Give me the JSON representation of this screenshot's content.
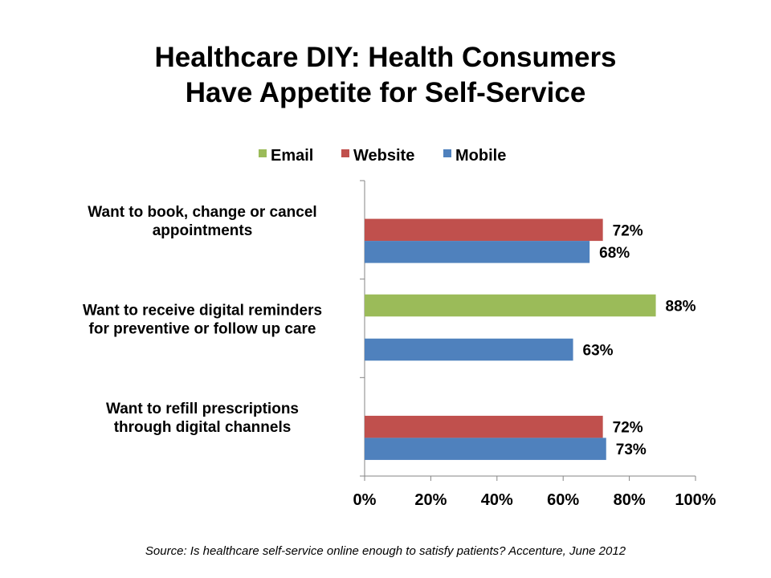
{
  "chart_data": {
    "type": "bar",
    "orientation": "horizontal",
    "title": "Healthcare DIY: Health Consumers Have Appetite for Self-Service",
    "title_lines": [
      "Healthcare DIY: Health Consumers",
      "Have Appetite for Self-Service"
    ],
    "categories": [
      [
        "Want to book, change or cancel",
        "appointments"
      ],
      [
        "Want to receive digital reminders",
        "for preventive or follow up care"
      ],
      [
        "Want to refill prescriptions",
        "through digital channels"
      ]
    ],
    "series": [
      {
        "name": "Email",
        "color": "#9BBB59",
        "values": [
          null,
          88,
          null
        ]
      },
      {
        "name": "Website",
        "color": "#C0504D",
        "values": [
          72,
          null,
          72
        ]
      },
      {
        "name": "Mobile",
        "color": "#4F81BD",
        "values": [
          68,
          63,
          73
        ]
      }
    ],
    "xlim": [
      0,
      100
    ],
    "xticks": [
      "0%",
      "20%",
      "40%",
      "60%",
      "80%",
      "100%"
    ],
    "legend_position": "top",
    "grid": false,
    "source": "Source: Is healthcare self-service online enough to satisfy patients? Accenture, June 2012"
  }
}
